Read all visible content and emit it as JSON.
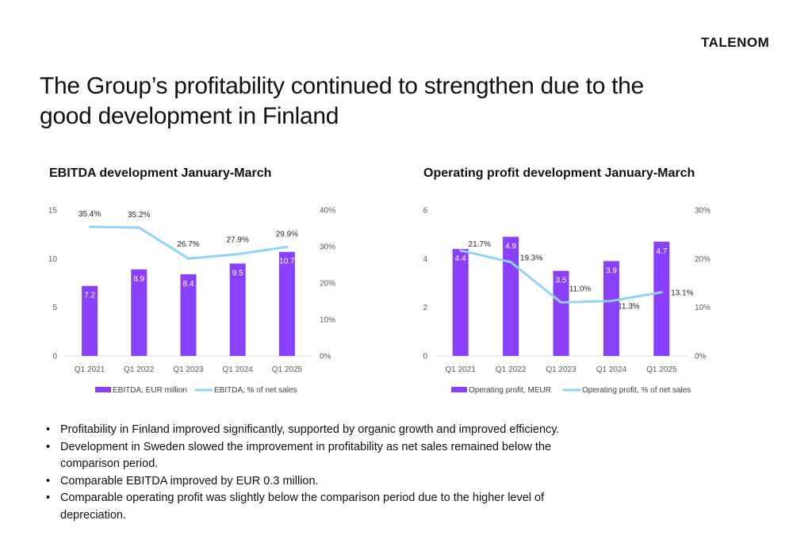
{
  "logo": "TALENOM",
  "page_title": "The Group’s profitability continued to strengthen due to the good development in Finland",
  "colors": {
    "bar": "#8a3ffc",
    "line": "#8fd3fa"
  },
  "chart_data": [
    {
      "type": "bar",
      "title": "EBITDA development January-March",
      "categories": [
        "Q1 2021",
        "Q1 2022",
        "Q1 2023",
        "Q1 2024",
        "Q1 2025"
      ],
      "series": [
        {
          "name": "EBITDA, EUR million",
          "type": "bar",
          "axis": "left",
          "values": [
            7.2,
            8.9,
            8.4,
            9.5,
            10.7
          ],
          "labels": [
            "7.2",
            "8.9",
            "8.4",
            "9.5",
            "10.7"
          ]
        },
        {
          "name": "EBITDA, % of net sales",
          "type": "line",
          "axis": "right",
          "values": [
            35.4,
            35.2,
            26.7,
            27.9,
            29.9
          ],
          "labels": [
            "35.4%",
            "35.2%",
            "26.7%",
            "27.9%",
            "29.9%"
          ]
        }
      ],
      "left_axis": {
        "ylim": [
          0,
          15
        ],
        "ticks": [
          0,
          5,
          10,
          15
        ],
        "tick_labels": [
          "0",
          "5",
          "10",
          "15"
        ]
      },
      "right_axis": {
        "ylim": [
          0,
          40
        ],
        "ticks": [
          0,
          10,
          20,
          30,
          40
        ],
        "tick_labels": [
          "0%",
          "10%",
          "20%",
          "30%",
          "40%"
        ]
      },
      "grid": false,
      "legend": "bottom"
    },
    {
      "type": "bar",
      "title": "Operating profit development January-March",
      "categories": [
        "Q1 2021",
        "Q1 2022",
        "Q1 2023",
        "Q1 2024",
        "Q1 2025"
      ],
      "series": [
        {
          "name": "Operating profit, MEUR",
          "type": "bar",
          "axis": "left",
          "values": [
            4.4,
            4.9,
            3.5,
            3.9,
            4.7
          ],
          "labels": [
            "4.4",
            "4.9",
            "3.5",
            "3.9",
            "4.7"
          ]
        },
        {
          "name": "Operating profit, % of net sales",
          "type": "line",
          "axis": "right",
          "values": [
            21.7,
            19.3,
            11.0,
            11.3,
            13.1
          ],
          "labels": [
            "21.7%",
            "19.3%",
            "11.0%",
            "11.3%",
            "13.1%"
          ]
        }
      ],
      "left_axis": {
        "ylim": [
          0,
          6
        ],
        "ticks": [
          0,
          2,
          4,
          6
        ],
        "tick_labels": [
          "0",
          "2",
          "4",
          "6"
        ]
      },
      "right_axis": {
        "ylim": [
          0,
          30
        ],
        "ticks": [
          0,
          10,
          20,
          30
        ],
        "tick_labels": [
          "0%",
          "10%",
          "20%",
          "30%"
        ]
      },
      "grid": false,
      "legend": "bottom"
    }
  ],
  "bullets": [
    "Profitability in Finland improved significantly, supported by organic growth and improved efficiency.",
    "Development in Sweden slowed the improvement in profitability as net sales remained below the comparison period.",
    "Comparable EBITDA improved by EUR 0.3 million.",
    "Comparable operating profit was slightly below the comparison period due to the higher level of depreciation."
  ]
}
